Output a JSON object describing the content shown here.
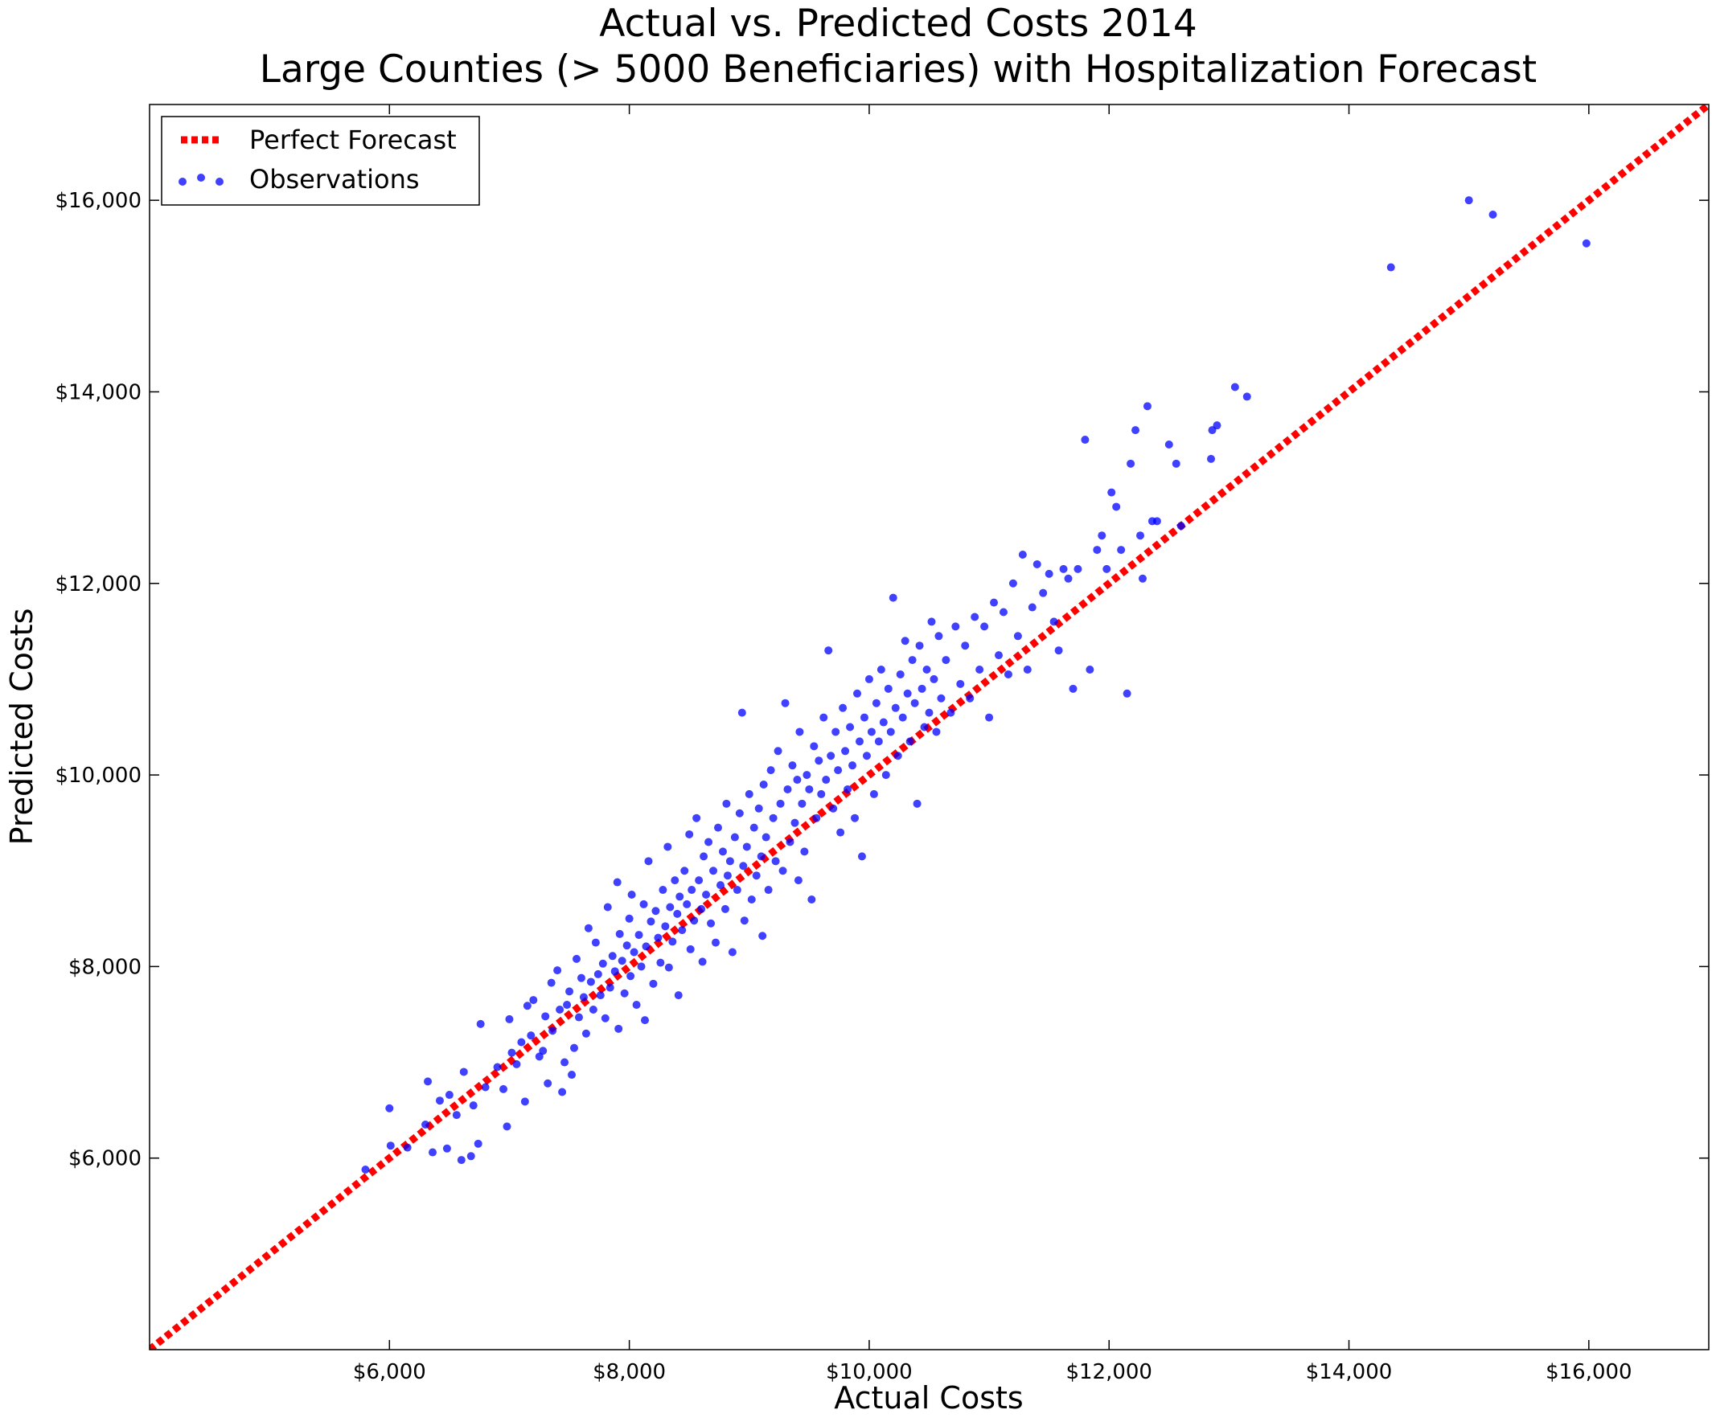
{
  "chart_data": {
    "type": "scatter",
    "title": "Actual vs. Predicted Costs 2014",
    "subtitle": "Large Counties (> 5000 Beneficiaries) with Hospitalization Forecast",
    "xlabel": "Actual Costs",
    "ylabel": "Predicted Costs",
    "xlim": [
      4000,
      17000
    ],
    "ylim": [
      4000,
      17000
    ],
    "x_ticks": [
      6000,
      8000,
      10000,
      12000,
      14000,
      16000
    ],
    "x_tick_labels": [
      "$6,000",
      "$8,000",
      "$10,000",
      "$12,000",
      "$14,000",
      "$16,000"
    ],
    "y_ticks": [
      6000,
      8000,
      10000,
      12000,
      14000,
      16000
    ],
    "y_tick_labels": [
      "$6,000",
      "$8,000",
      "$10,000",
      "$12,000",
      "$14,000",
      "$16,000"
    ],
    "grid": false,
    "legend_position": "top-left",
    "legend": [
      "Perfect Forecast",
      "Observations"
    ],
    "series": [
      {
        "name": "Perfect Forecast",
        "kind": "line",
        "style": "dotted",
        "color": "#ff0000",
        "x": [
          4000,
          17000
        ],
        "y": [
          4000,
          17000
        ]
      },
      {
        "name": "Observations",
        "kind": "scatter",
        "color": "#0000ff",
        "points": [
          [
            5800,
            5880
          ],
          [
            6000,
            6520
          ],
          [
            6010,
            6130
          ],
          [
            6150,
            6110
          ],
          [
            6300,
            6350
          ],
          [
            6320,
            6800
          ],
          [
            6360,
            6060
          ],
          [
            6420,
            6600
          ],
          [
            6480,
            6100
          ],
          [
            6500,
            6660
          ],
          [
            6560,
            6450
          ],
          [
            6600,
            5980
          ],
          [
            6620,
            6900
          ],
          [
            6680,
            6020
          ],
          [
            6700,
            6550
          ],
          [
            6740,
            6150
          ],
          [
            6760,
            7400
          ],
          [
            6800,
            6740
          ],
          [
            6900,
            6950
          ],
          [
            6950,
            6720
          ],
          [
            6980,
            6330
          ],
          [
            7000,
            7450
          ],
          [
            7020,
            7100
          ],
          [
            7060,
            6980
          ],
          [
            7100,
            7210
          ],
          [
            7130,
            6590
          ],
          [
            7150,
            7590
          ],
          [
            7180,
            7280
          ],
          [
            7200,
            7650
          ],
          [
            7250,
            7060
          ],
          [
            7280,
            7120
          ],
          [
            7300,
            7480
          ],
          [
            7320,
            6780
          ],
          [
            7350,
            7830
          ],
          [
            7360,
            7330
          ],
          [
            7400,
            7960
          ],
          [
            7420,
            7550
          ],
          [
            7440,
            6690
          ],
          [
            7460,
            7000
          ],
          [
            7480,
            7600
          ],
          [
            7500,
            7740
          ],
          [
            7520,
            6870
          ],
          [
            7540,
            7150
          ],
          [
            7560,
            8080
          ],
          [
            7580,
            7470
          ],
          [
            7600,
            7880
          ],
          [
            7620,
            7680
          ],
          [
            7640,
            7300
          ],
          [
            7660,
            8400
          ],
          [
            7680,
            7840
          ],
          [
            7700,
            7550
          ],
          [
            7720,
            8250
          ],
          [
            7740,
            7920
          ],
          [
            7760,
            7700
          ],
          [
            7780,
            8030
          ],
          [
            7800,
            7460
          ],
          [
            7820,
            8620
          ],
          [
            7840,
            7780
          ],
          [
            7860,
            8110
          ],
          [
            7880,
            7950
          ],
          [
            7900,
            8880
          ],
          [
            7910,
            7350
          ],
          [
            7920,
            8340
          ],
          [
            7940,
            8060
          ],
          [
            7960,
            7720
          ],
          [
            7980,
            8220
          ],
          [
            8000,
            8500
          ],
          [
            8010,
            7900
          ],
          [
            8020,
            8750
          ],
          [
            8040,
            8150
          ],
          [
            8060,
            7600
          ],
          [
            8080,
            8330
          ],
          [
            8100,
            8000
          ],
          [
            8120,
            8650
          ],
          [
            8130,
            7440
          ],
          [
            8140,
            8210
          ],
          [
            8160,
            9100
          ],
          [
            8180,
            8470
          ],
          [
            8200,
            7820
          ],
          [
            8220,
            8580
          ],
          [
            8240,
            8300
          ],
          [
            8260,
            8040
          ],
          [
            8280,
            8800
          ],
          [
            8300,
            8420
          ],
          [
            8320,
            9250
          ],
          [
            8330,
            7990
          ],
          [
            8340,
            8620
          ],
          [
            8360,
            8260
          ],
          [
            8380,
            8900
          ],
          [
            8400,
            8550
          ],
          [
            8410,
            7700
          ],
          [
            8420,
            8730
          ],
          [
            8440,
            8380
          ],
          [
            8460,
            9000
          ],
          [
            8480,
            8650
          ],
          [
            8500,
            9380
          ],
          [
            8510,
            8180
          ],
          [
            8520,
            8800
          ],
          [
            8540,
            8480
          ],
          [
            8560,
            9550
          ],
          [
            8580,
            8900
          ],
          [
            8600,
            8600
          ],
          [
            8610,
            8050
          ],
          [
            8620,
            9150
          ],
          [
            8640,
            8750
          ],
          [
            8660,
            9300
          ],
          [
            8680,
            8450
          ],
          [
            8700,
            9000
          ],
          [
            8720,
            8250
          ],
          [
            8740,
            9450
          ],
          [
            8760,
            8850
          ],
          [
            8780,
            9200
          ],
          [
            8800,
            8600
          ],
          [
            8810,
            9700
          ],
          [
            8820,
            8950
          ],
          [
            8840,
            9100
          ],
          [
            8860,
            8150
          ],
          [
            8880,
            9350
          ],
          [
            8900,
            8800
          ],
          [
            8920,
            9600
          ],
          [
            8940,
            10650
          ],
          [
            8950,
            9050
          ],
          [
            8960,
            8480
          ],
          [
            8980,
            9250
          ],
          [
            9000,
            9800
          ],
          [
            9020,
            8700
          ],
          [
            9040,
            9450
          ],
          [
            9060,
            8950
          ],
          [
            9080,
            9650
          ],
          [
            9100,
            9150
          ],
          [
            9110,
            8320
          ],
          [
            9120,
            9900
          ],
          [
            9140,
            9350
          ],
          [
            9160,
            8800
          ],
          [
            9180,
            10050
          ],
          [
            9200,
            9550
          ],
          [
            9220,
            9100
          ],
          [
            9240,
            10250
          ],
          [
            9260,
            9700
          ],
          [
            9280,
            9000
          ],
          [
            9300,
            10750
          ],
          [
            9320,
            9850
          ],
          [
            9340,
            9300
          ],
          [
            9360,
            10100
          ],
          [
            9380,
            9500
          ],
          [
            9400,
            9950
          ],
          [
            9410,
            8900
          ],
          [
            9420,
            10450
          ],
          [
            9440,
            9700
          ],
          [
            9460,
            9200
          ],
          [
            9480,
            10000
          ],
          [
            9500,
            9850
          ],
          [
            9520,
            8700
          ],
          [
            9540,
            10300
          ],
          [
            9560,
            9550
          ],
          [
            9580,
            10150
          ],
          [
            9600,
            9800
          ],
          [
            9620,
            10600
          ],
          [
            9640,
            9950
          ],
          [
            9660,
            11300
          ],
          [
            9680,
            10200
          ],
          [
            9700,
            9650
          ],
          [
            9720,
            10450
          ],
          [
            9740,
            10050
          ],
          [
            9760,
            9400
          ],
          [
            9780,
            10700
          ],
          [
            9800,
            10250
          ],
          [
            9820,
            9850
          ],
          [
            9840,
            10500
          ],
          [
            9860,
            10100
          ],
          [
            9880,
            9550
          ],
          [
            9900,
            10850
          ],
          [
            9920,
            10350
          ],
          [
            9940,
            9150
          ],
          [
            9960,
            10600
          ],
          [
            9980,
            10200
          ],
          [
            10000,
            11000
          ],
          [
            10020,
            10450
          ],
          [
            10040,
            9800
          ],
          [
            10060,
            10750
          ],
          [
            10080,
            10350
          ],
          [
            10100,
            11100
          ],
          [
            10120,
            10550
          ],
          [
            10140,
            10000
          ],
          [
            10160,
            10900
          ],
          [
            10180,
            10450
          ],
          [
            10200,
            11850
          ],
          [
            10220,
            10700
          ],
          [
            10240,
            10200
          ],
          [
            10260,
            11050
          ],
          [
            10280,
            10600
          ],
          [
            10300,
            11400
          ],
          [
            10320,
            10850
          ],
          [
            10340,
            10350
          ],
          [
            10360,
            11200
          ],
          [
            10380,
            10750
          ],
          [
            10400,
            9700
          ],
          [
            10420,
            11350
          ],
          [
            10440,
            10900
          ],
          [
            10460,
            10500
          ],
          [
            10480,
            11100
          ],
          [
            10500,
            10650
          ],
          [
            10520,
            11600
          ],
          [
            10540,
            11000
          ],
          [
            10560,
            10450
          ],
          [
            10580,
            11450
          ],
          [
            10600,
            10800
          ],
          [
            10640,
            11200
          ],
          [
            10680,
            10650
          ],
          [
            10720,
            11550
          ],
          [
            10760,
            10950
          ],
          [
            10800,
            11350
          ],
          [
            10840,
            10800
          ],
          [
            10880,
            11650
          ],
          [
            10920,
            11100
          ],
          [
            10960,
            11550
          ],
          [
            11000,
            10600
          ],
          [
            11040,
            11800
          ],
          [
            11080,
            11250
          ],
          [
            11120,
            11700
          ],
          [
            11160,
            11050
          ],
          [
            11200,
            12000
          ],
          [
            11240,
            11450
          ],
          [
            11280,
            12300
          ],
          [
            11320,
            11100
          ],
          [
            11360,
            11750
          ],
          [
            11400,
            12200
          ],
          [
            11450,
            11900
          ],
          [
            11500,
            12100
          ],
          [
            11540,
            11600
          ],
          [
            11580,
            11300
          ],
          [
            11620,
            12150
          ],
          [
            11660,
            12050
          ],
          [
            11700,
            10900
          ],
          [
            11740,
            12150
          ],
          [
            11800,
            13500
          ],
          [
            11840,
            11100
          ],
          [
            11900,
            12350
          ],
          [
            11940,
            12500
          ],
          [
            11980,
            12150
          ],
          [
            12020,
            12950
          ],
          [
            12060,
            12800
          ],
          [
            12100,
            12350
          ],
          [
            12150,
            10850
          ],
          [
            12180,
            13250
          ],
          [
            12220,
            13600
          ],
          [
            12260,
            12500
          ],
          [
            12280,
            12050
          ],
          [
            12320,
            13850
          ],
          [
            12360,
            12650
          ],
          [
            12400,
            12650
          ],
          [
            12500,
            13450
          ],
          [
            12560,
            13250
          ],
          [
            12600,
            12600
          ],
          [
            12850,
            13300
          ],
          [
            12860,
            13600
          ],
          [
            12900,
            13650
          ],
          [
            13050,
            14050
          ],
          [
            13150,
            13950
          ],
          [
            14350,
            15300
          ],
          [
            15000,
            16000
          ],
          [
            15200,
            15850
          ],
          [
            15980,
            15550
          ]
        ]
      }
    ]
  }
}
